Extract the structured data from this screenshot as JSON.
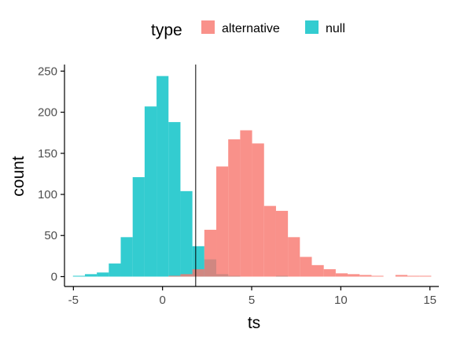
{
  "chart_data": {
    "type": "bar",
    "subtype": "overlapping-histogram",
    "xlabel": "ts",
    "ylabel": "count",
    "xlim": [
      -5.5,
      15.5
    ],
    "ylim": [
      -12,
      258
    ],
    "x_ticks": [
      -5,
      0,
      5,
      10,
      15
    ],
    "y_ticks": [
      0,
      50,
      100,
      150,
      200,
      250
    ],
    "bin_width": 0.67,
    "grid": false,
    "legend": {
      "title": "type",
      "placement": "top",
      "entries": [
        "alternative",
        "null"
      ]
    },
    "colors": {
      "alternative": "#F8766D",
      "null": "#00BFC4"
    },
    "opacity": 0.8,
    "vline": {
      "x": 1.86
    },
    "series": [
      {
        "name": "null",
        "bins": [
          {
            "x": -4.69,
            "count": 1
          },
          {
            "x": -4.02,
            "count": 3
          },
          {
            "x": -3.35,
            "count": 5
          },
          {
            "x": -2.68,
            "count": 16
          },
          {
            "x": -2.01,
            "count": 48
          },
          {
            "x": -1.34,
            "count": 121
          },
          {
            "x": -0.67,
            "count": 207
          },
          {
            "x": 0.0,
            "count": 244
          },
          {
            "x": 0.67,
            "count": 188
          },
          {
            "x": 1.34,
            "count": 104
          },
          {
            "x": 2.01,
            "count": 37
          },
          {
            "x": 2.68,
            "count": 21
          },
          {
            "x": 3.35,
            "count": 3
          },
          {
            "x": 4.02,
            "count": 1
          },
          {
            "x": 6.7,
            "count": 1
          }
        ]
      },
      {
        "name": "alternative",
        "bins": [
          {
            "x": 0.67,
            "count": 1
          },
          {
            "x": 1.34,
            "count": 3
          },
          {
            "x": 2.01,
            "count": 9
          },
          {
            "x": 2.68,
            "count": 57
          },
          {
            "x": 3.35,
            "count": 134
          },
          {
            "x": 4.02,
            "count": 167
          },
          {
            "x": 4.69,
            "count": 178
          },
          {
            "x": 5.36,
            "count": 162
          },
          {
            "x": 6.03,
            "count": 86
          },
          {
            "x": 6.7,
            "count": 80
          },
          {
            "x": 7.37,
            "count": 48
          },
          {
            "x": 8.04,
            "count": 24
          },
          {
            "x": 8.71,
            "count": 14
          },
          {
            "x": 9.38,
            "count": 9
          },
          {
            "x": 10.05,
            "count": 4
          },
          {
            "x": 10.72,
            "count": 3
          },
          {
            "x": 11.39,
            "count": 2
          },
          {
            "x": 12.06,
            "count": 1
          },
          {
            "x": 12.73,
            "count": 0
          },
          {
            "x": 13.4,
            "count": 2
          },
          {
            "x": 14.07,
            "count": 1
          },
          {
            "x": 14.74,
            "count": 1
          }
        ]
      }
    ]
  }
}
